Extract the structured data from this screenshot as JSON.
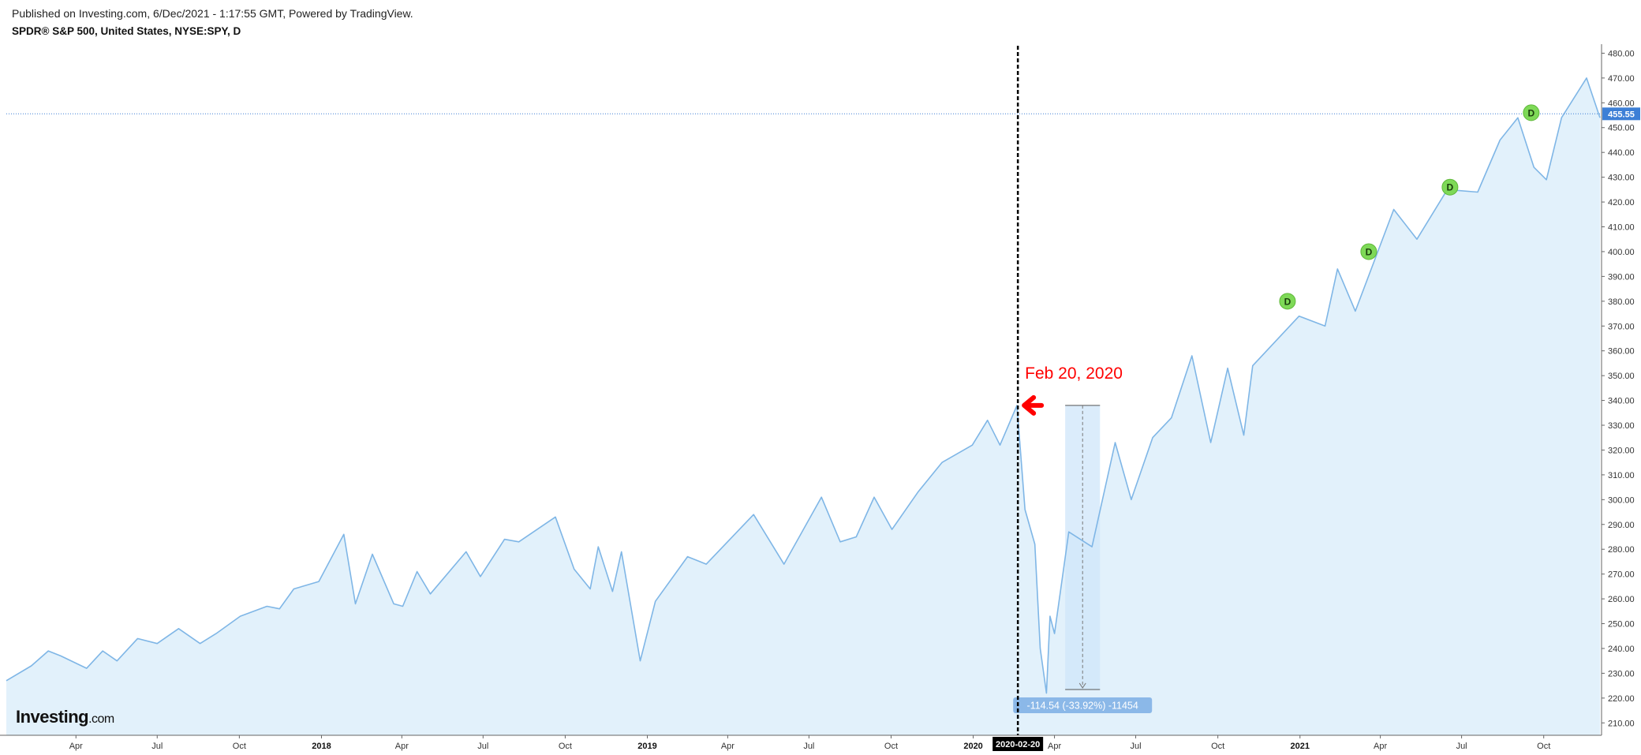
{
  "header": {
    "published": "Published on Investing.com, 6/Dec/2021 - 1:17:55 GMT, Powered by TradingView.",
    "symbol": "SPDR® S&P 500, United States, NYSE:SPY, D"
  },
  "logo": {
    "brand": "Investing",
    "suffix": ".com"
  },
  "colors": {
    "line": "#7fb6e6",
    "area": "#e2f1fb",
    "price_label_bg": "#3d7fd6",
    "dividend_marker": "#7ed957",
    "annotation": "#ff0000",
    "measure_box": "#cfe6fa",
    "measure_label_bg": "#8bb8e8"
  },
  "chart_data": {
    "type": "area",
    "title": "SPDR® S&P 500, United States, NYSE:SPY, D",
    "y_ticks": [
      "210.00",
      "220.00",
      "230.00",
      "240.00",
      "250.00",
      "260.00",
      "270.00",
      "280.00",
      "290.00",
      "300.00",
      "310.00",
      "320.00",
      "330.00",
      "340.00",
      "350.00",
      "360.00",
      "370.00",
      "380.00",
      "390.00",
      "400.00",
      "410.00",
      "420.00",
      "430.00",
      "440.00",
      "450.00",
      "460.00",
      "470.00",
      "480.00"
    ],
    "ylim": [
      205,
      483
    ],
    "xlim": [
      "2017-01-13",
      "2021-12-03"
    ],
    "x_ticks": [
      {
        "date": "2017-04-01",
        "label": "Apr",
        "year": false
      },
      {
        "date": "2017-07-01",
        "label": "Jul",
        "year": false
      },
      {
        "date": "2017-10-01",
        "label": "Oct",
        "year": false
      },
      {
        "date": "2018-01-01",
        "label": "2018",
        "year": true
      },
      {
        "date": "2018-04-01",
        "label": "Apr",
        "year": false
      },
      {
        "date": "2018-07-01",
        "label": "Jul",
        "year": false
      },
      {
        "date": "2018-10-01",
        "label": "Oct",
        "year": false
      },
      {
        "date": "2019-01-01",
        "label": "2019",
        "year": true
      },
      {
        "date": "2019-04-01",
        "label": "Apr",
        "year": false
      },
      {
        "date": "2019-07-01",
        "label": "Jul",
        "year": false
      },
      {
        "date": "2019-10-01",
        "label": "Oct",
        "year": false
      },
      {
        "date": "2020-01-01",
        "label": "2020",
        "year": true
      },
      {
        "date": "2020-04-01",
        "label": "Apr",
        "year": false
      },
      {
        "date": "2020-07-01",
        "label": "Jul",
        "year": false
      },
      {
        "date": "2020-10-01",
        "label": "Oct",
        "year": false
      },
      {
        "date": "2021-01-01",
        "label": "2021",
        "year": true
      },
      {
        "date": "2021-04-01",
        "label": "Apr",
        "year": false
      },
      {
        "date": "2021-07-01",
        "label": "Jul",
        "year": false
      },
      {
        "date": "2021-10-01",
        "label": "Oct",
        "year": false
      }
    ],
    "series": [
      {
        "points": [
          [
            "2017-01-13",
            227
          ],
          [
            "2017-02-10",
            233
          ],
          [
            "2017-03-01",
            239
          ],
          [
            "2017-03-15",
            237
          ],
          [
            "2017-04-13",
            232
          ],
          [
            "2017-05-01",
            239
          ],
          [
            "2017-05-17",
            235
          ],
          [
            "2017-06-09",
            244
          ],
          [
            "2017-07-01",
            242
          ],
          [
            "2017-07-25",
            248
          ],
          [
            "2017-08-18",
            242
          ],
          [
            "2017-09-05",
            246
          ],
          [
            "2017-10-02",
            253
          ],
          [
            "2017-11-01",
            257
          ],
          [
            "2017-11-15",
            256
          ],
          [
            "2017-12-01",
            264
          ],
          [
            "2017-12-29",
            267
          ],
          [
            "2018-01-26",
            286
          ],
          [
            "2018-02-08",
            258
          ],
          [
            "2018-02-27",
            278
          ],
          [
            "2018-03-23",
            258
          ],
          [
            "2018-04-02",
            257
          ],
          [
            "2018-04-18",
            271
          ],
          [
            "2018-05-03",
            262
          ],
          [
            "2018-06-12",
            279
          ],
          [
            "2018-06-28",
            269
          ],
          [
            "2018-07-25",
            284
          ],
          [
            "2018-08-10",
            283
          ],
          [
            "2018-09-20",
            293
          ],
          [
            "2018-10-11",
            272
          ],
          [
            "2018-10-29",
            264
          ],
          [
            "2018-11-07",
            281
          ],
          [
            "2018-11-23",
            263
          ],
          [
            "2018-12-03",
            279
          ],
          [
            "2018-12-24",
            235
          ],
          [
            "2019-01-10",
            259
          ],
          [
            "2019-02-15",
            277
          ],
          [
            "2019-03-08",
            274
          ],
          [
            "2019-04-30",
            294
          ],
          [
            "2019-06-03",
            274
          ],
          [
            "2019-07-15",
            301
          ],
          [
            "2019-08-05",
            283
          ],
          [
            "2019-08-23",
            285
          ],
          [
            "2019-09-12",
            301
          ],
          [
            "2019-10-02",
            288
          ],
          [
            "2019-10-31",
            303
          ],
          [
            "2019-11-27",
            315
          ],
          [
            "2019-12-31",
            322
          ],
          [
            "2020-01-17",
            332
          ],
          [
            "2020-01-31",
            322
          ],
          [
            "2020-02-19",
            338
          ],
          [
            "2020-02-28",
            296
          ],
          [
            "2020-03-10",
            282
          ],
          [
            "2020-03-16",
            240
          ],
          [
            "2020-03-23",
            222
          ],
          [
            "2020-03-27",
            253
          ],
          [
            "2020-04-01",
            246
          ],
          [
            "2020-04-17",
            287
          ],
          [
            "2020-05-13",
            281
          ],
          [
            "2020-06-08",
            323
          ],
          [
            "2020-06-26",
            300
          ],
          [
            "2020-07-20",
            325
          ],
          [
            "2020-08-10",
            333
          ],
          [
            "2020-09-02",
            358
          ],
          [
            "2020-09-23",
            323
          ],
          [
            "2020-10-12",
            353
          ],
          [
            "2020-10-30",
            326
          ],
          [
            "2020-11-09",
            354
          ],
          [
            "2020-12-31",
            374
          ],
          [
            "2021-01-29",
            370
          ],
          [
            "2021-02-12",
            393
          ],
          [
            "2021-03-04",
            376
          ],
          [
            "2021-04-16",
            417
          ],
          [
            "2021-05-12",
            405
          ],
          [
            "2021-06-15",
            425
          ],
          [
            "2021-07-19",
            424
          ],
          [
            "2021-08-13",
            445
          ],
          [
            "2021-09-02",
            454
          ],
          [
            "2021-09-20",
            434
          ],
          [
            "2021-10-04",
            429
          ],
          [
            "2021-10-21",
            454
          ],
          [
            "2021-11-18",
            470
          ],
          [
            "2021-12-03",
            454
          ]
        ]
      }
    ],
    "dividend_markers": [
      {
        "date": "2020-12-18",
        "value": 380,
        "label": "D"
      },
      {
        "date": "2021-03-19",
        "value": 400,
        "label": "D"
      },
      {
        "date": "2021-06-18",
        "value": 426,
        "label": "D"
      },
      {
        "date": "2021-09-17",
        "value": 456,
        "label": "D"
      }
    ],
    "last_price": {
      "value": 455.55,
      "label": "455.55"
    },
    "crosshair": {
      "date": "2020-02-20",
      "label": "2020-02-20"
    },
    "annotation": {
      "text": "Feb 20, 2020",
      "date": "2020-02-20",
      "value": 338
    },
    "measurement": {
      "start_date": "2020-04-13",
      "end_date": "2020-05-22",
      "from_value": 338,
      "to_value": 223.46,
      "label": "-114.54 (-33.92%) -11454"
    }
  }
}
